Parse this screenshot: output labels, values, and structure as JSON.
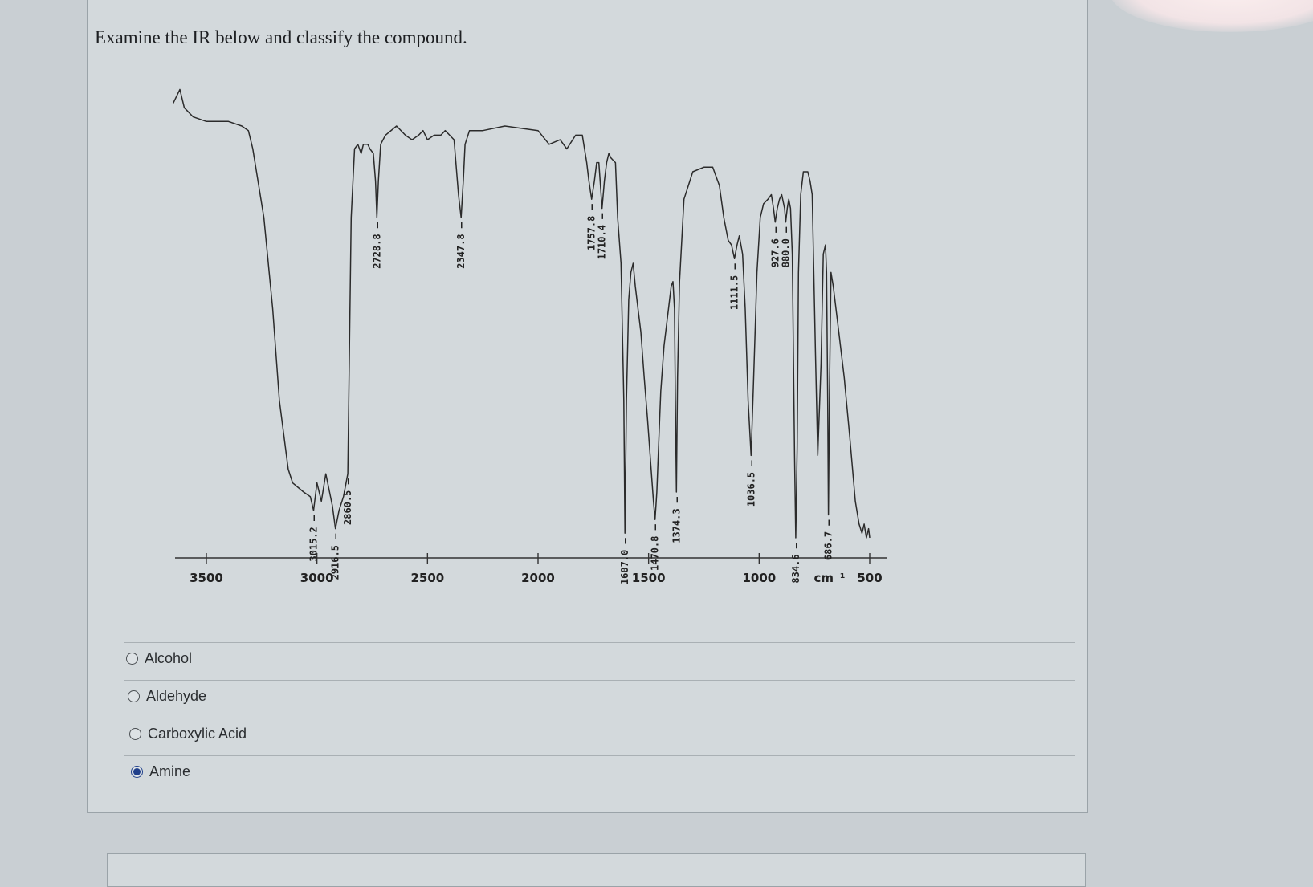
{
  "question": {
    "text": "Examine the IR below and classify the compound."
  },
  "chart_data": {
    "type": "line",
    "title": "",
    "xlabel": "cm-1",
    "ylabel": "",
    "x_reversed": true,
    "xlim": [
      3700,
      480
    ],
    "x_ticks": [
      3500,
      3000,
      2500,
      2000,
      1500,
      1000,
      500
    ],
    "unit_label": "cm⁻¹",
    "grid": false,
    "peaks": [
      {
        "label": "3015.2",
        "x": 3015.2
      },
      {
        "label": "2916.5",
        "x": 2916.5
      },
      {
        "label": "2860.5",
        "x": 2860.5
      },
      {
        "label": "2728.8",
        "x": 2728.8
      },
      {
        "label": "2347.8",
        "x": 2347.8
      },
      {
        "label": "1757.8",
        "x": 1757.8
      },
      {
        "label": "1710.4",
        "x": 1710.4
      },
      {
        "label": "1607.0",
        "x": 1607.0
      },
      {
        "label": "1470.8",
        "x": 1470.8
      },
      {
        "label": "1374.3",
        "x": 1374.3
      },
      {
        "label": "1111.5",
        "x": 1111.5
      },
      {
        "label": "1036.5",
        "x": 1036.5
      },
      {
        "label": "927.6",
        "x": 927.6
      },
      {
        "label": "880.0",
        "x": 880.0
      },
      {
        "label": "834.6",
        "x": 834.6
      },
      {
        "label": "686.7",
        "x": 686.7
      }
    ],
    "series": [
      {
        "values": [
          [
            3650,
            95
          ],
          [
            3620,
            98
          ],
          [
            3600,
            94
          ],
          [
            3560,
            92
          ],
          [
            3500,
            91
          ],
          [
            3400,
            91
          ],
          [
            3340,
            90
          ],
          [
            3310,
            89
          ],
          [
            3290,
            85
          ],
          [
            3240,
            70
          ],
          [
            3200,
            50
          ],
          [
            3170,
            30
          ],
          [
            3130,
            15
          ],
          [
            3110,
            12
          ],
          [
            3060,
            10
          ],
          [
            3030,
            9
          ],
          [
            3015.2,
            6
          ],
          [
            3000,
            12
          ],
          [
            2980,
            8
          ],
          [
            2960,
            14
          ],
          [
            2930,
            7
          ],
          [
            2916.5,
            2
          ],
          [
            2900,
            6
          ],
          [
            2880,
            9
          ],
          [
            2860.5,
            14
          ],
          [
            2845,
            70
          ],
          [
            2830,
            85
          ],
          [
            2815,
            86
          ],
          [
            2800,
            84
          ],
          [
            2790,
            86
          ],
          [
            2780,
            86
          ],
          [
            2770,
            86
          ],
          [
            2760,
            85
          ],
          [
            2745,
            84
          ],
          [
            2735,
            78
          ],
          [
            2728.8,
            70
          ],
          [
            2722,
            78
          ],
          [
            2712,
            86
          ],
          [
            2690,
            88
          ],
          [
            2640,
            90
          ],
          [
            2600,
            88
          ],
          [
            2570,
            87
          ],
          [
            2540,
            88
          ],
          [
            2520,
            89
          ],
          [
            2500,
            87
          ],
          [
            2470,
            88
          ],
          [
            2440,
            88
          ],
          [
            2420,
            89
          ],
          [
            2400,
            88
          ],
          [
            2380,
            87
          ],
          [
            2360,
            75
          ],
          [
            2347.8,
            70
          ],
          [
            2338,
            78
          ],
          [
            2330,
            86
          ],
          [
            2310,
            89
          ],
          [
            2250,
            89
          ],
          [
            2150,
            90
          ],
          [
            2000,
            89
          ],
          [
            1950,
            86
          ],
          [
            1900,
            87
          ],
          [
            1870,
            85
          ],
          [
            1830,
            88
          ],
          [
            1800,
            88
          ],
          [
            1780,
            82
          ],
          [
            1770,
            78
          ],
          [
            1757.8,
            74
          ],
          [
            1745,
            78
          ],
          [
            1735,
            82
          ],
          [
            1725,
            82
          ],
          [
            1710.4,
            72
          ],
          [
            1700,
            78
          ],
          [
            1690,
            82
          ],
          [
            1680,
            84
          ],
          [
            1670,
            83
          ],
          [
            1650,
            82
          ],
          [
            1640,
            70
          ],
          [
            1625,
            60
          ],
          [
            1612,
            30
          ],
          [
            1607.0,
            1
          ],
          [
            1600,
            30
          ],
          [
            1590,
            52
          ],
          [
            1580,
            58
          ],
          [
            1570,
            60
          ],
          [
            1560,
            55
          ],
          [
            1548,
            50
          ],
          [
            1535,
            45
          ],
          [
            1520,
            35
          ],
          [
            1505,
            26
          ],
          [
            1490,
            16
          ],
          [
            1478,
            8
          ],
          [
            1470.8,
            4
          ],
          [
            1463,
            10
          ],
          [
            1455,
            20
          ],
          [
            1445,
            32
          ],
          [
            1430,
            42
          ],
          [
            1410,
            50
          ],
          [
            1398,
            55
          ],
          [
            1390,
            56
          ],
          [
            1383,
            50
          ],
          [
            1379,
            30
          ],
          [
            1374.3,
            10
          ],
          [
            1369,
            35
          ],
          [
            1360,
            56
          ],
          [
            1340,
            74
          ],
          [
            1300,
            80
          ],
          [
            1250,
            81
          ],
          [
            1210,
            81
          ],
          [
            1180,
            77
          ],
          [
            1160,
            70
          ],
          [
            1140,
            65
          ],
          [
            1125,
            64
          ],
          [
            1111.5,
            61
          ],
          [
            1100,
            64
          ],
          [
            1090,
            66
          ],
          [
            1075,
            62
          ],
          [
            1063,
            50
          ],
          [
            1050,
            30
          ],
          [
            1036.5,
            18
          ],
          [
            1025,
            35
          ],
          [
            1010,
            58
          ],
          [
            995,
            70
          ],
          [
            980,
            73
          ],
          [
            960,
            74
          ],
          [
            945,
            75
          ],
          [
            935,
            72
          ],
          [
            927.6,
            69
          ],
          [
            918,
            72
          ],
          [
            908,
            74
          ],
          [
            898,
            75
          ],
          [
            885,
            72
          ],
          [
            880.0,
            69
          ],
          [
            873,
            72
          ],
          [
            866,
            74
          ],
          [
            858,
            72
          ],
          [
            850,
            62
          ],
          [
            845,
            40
          ],
          [
            840,
            18
          ],
          [
            834.6,
            0
          ],
          [
            828,
            20
          ],
          [
            822,
            58
          ],
          [
            812,
            75
          ],
          [
            800,
            80
          ],
          [
            780,
            80
          ],
          [
            770,
            78
          ],
          [
            760,
            75
          ],
          [
            745,
            40
          ],
          [
            735,
            18
          ],
          [
            720,
            38
          ],
          [
            710,
            62
          ],
          [
            700,
            64
          ],
          [
            695,
            58
          ],
          [
            690,
            30
          ],
          [
            686.7,
            5
          ],
          [
            682,
            32
          ],
          [
            675,
            58
          ],
          [
            665,
            55
          ],
          [
            640,
            45
          ],
          [
            615,
            35
          ],
          [
            590,
            22
          ],
          [
            565,
            8
          ],
          [
            548,
            3
          ],
          [
            535,
            1
          ],
          [
            525,
            3
          ],
          [
            515,
            0
          ],
          [
            505,
            2
          ],
          [
            500,
            0
          ]
        ]
      }
    ]
  },
  "options": [
    {
      "label": "Alcohol",
      "checked": false
    },
    {
      "label": "Aldehyde",
      "checked": false
    },
    {
      "label": "Carboxylic Acid",
      "checked": false
    },
    {
      "label": "Amine",
      "checked": true
    }
  ]
}
